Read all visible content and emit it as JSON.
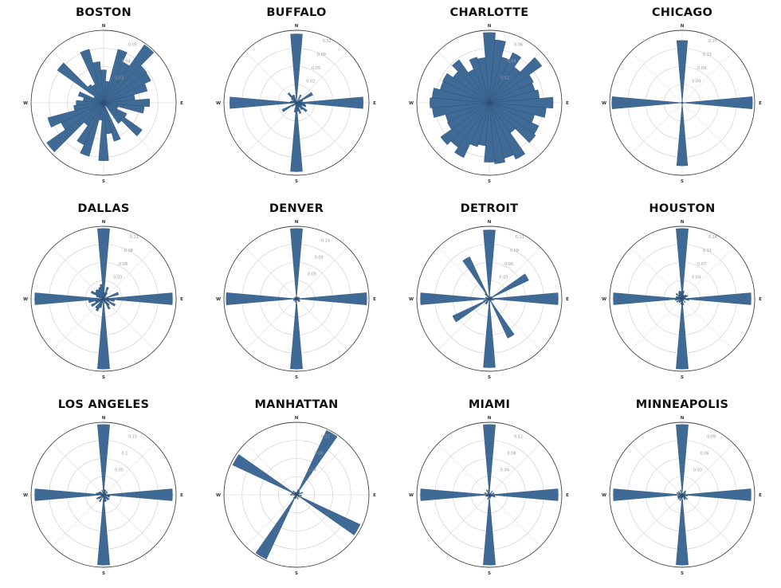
{
  "chart_data": [
    {
      "type": "polar-bar",
      "title": "BOSTON",
      "directions": [
        "N",
        "E",
        "S",
        "W"
      ],
      "rticks": [
        "0.03",
        "0.04",
        "0.05"
      ],
      "seed": 1,
      "base": 0.42,
      "jitter": 0.38,
      "spikes": [
        [
          43,
          0.98
        ],
        [
          227,
          0.96
        ],
        [
          305,
          0.78
        ],
        [
          125,
          0.65
        ],
        [
          163,
          0.55
        ],
        [
          60,
          0.72
        ]
      ]
    },
    {
      "type": "polar-bar",
      "title": "BUFFALO",
      "directions": [
        "N",
        "E",
        "S",
        "W"
      ],
      "rticks": [
        "0.02",
        "0.05",
        "0.09",
        "0.12"
      ],
      "seed": 2,
      "base": 0.08,
      "jitter": 0.1,
      "spikes": [
        [
          0,
          0.95
        ],
        [
          90,
          0.92
        ],
        [
          180,
          0.95
        ],
        [
          270,
          0.92
        ],
        [
          60,
          0.25
        ],
        [
          240,
          0.22
        ]
      ]
    },
    {
      "type": "polar-bar",
      "title": "CHARLOTTE",
      "directions": [
        "N",
        "E",
        "S",
        "W"
      ],
      "rticks": [
        "0.02",
        "0.04",
        "0.06"
      ],
      "seed": 3,
      "base": 0.7,
      "jitter": 0.2,
      "spikes": [
        [
          0,
          0.97
        ],
        [
          180,
          0.82
        ],
        [
          270,
          0.82
        ],
        [
          90,
          0.77
        ]
      ]
    },
    {
      "type": "polar-bar",
      "title": "CHICAGO",
      "directions": [
        "N",
        "E",
        "S",
        "W"
      ],
      "rticks": [
        "0.04",
        "0.09",
        "0.13",
        "0.17"
      ],
      "seed": 4,
      "base": 0.01,
      "jitter": 0.01,
      "spikes": [
        [
          0,
          0.86
        ],
        [
          90,
          0.97
        ],
        [
          180,
          0.87
        ],
        [
          270,
          0.97
        ]
      ]
    },
    {
      "type": "polar-bar",
      "title": "DALLAS",
      "directions": [
        "N",
        "E",
        "S",
        "W"
      ],
      "rticks": [
        "0.03",
        "0.06",
        "0.08",
        "0.11"
      ],
      "seed": 5,
      "base": 0.08,
      "jitter": 0.14,
      "spikes": [
        [
          0,
          0.97
        ],
        [
          90,
          0.95
        ],
        [
          180,
          0.97
        ],
        [
          270,
          0.95
        ]
      ]
    },
    {
      "type": "polar-bar",
      "title": "DENVER",
      "directions": [
        "N",
        "E",
        "S",
        "W"
      ],
      "rticks": [
        "0.05",
        "0.09",
        "0.14"
      ],
      "seed": 6,
      "base": 0.03,
      "jitter": 0.03,
      "spikes": [
        [
          0,
          0.97
        ],
        [
          90,
          0.97
        ],
        [
          180,
          0.97
        ],
        [
          270,
          0.97
        ]
      ]
    },
    {
      "type": "polar-bar",
      "title": "DETROIT",
      "directions": [
        "N",
        "E",
        "S",
        "W"
      ],
      "rticks": [
        "0.03",
        "0.06",
        "0.09",
        "0.11"
      ],
      "seed": 7,
      "base": 0.04,
      "jitter": 0.05,
      "spikes": [
        [
          0,
          0.95
        ],
        [
          90,
          0.95
        ],
        [
          180,
          0.95
        ],
        [
          270,
          0.95
        ],
        [
          330,
          0.64
        ],
        [
          62,
          0.6
        ],
        [
          242,
          0.56
        ],
        [
          150,
          0.6
        ]
      ]
    },
    {
      "type": "polar-bar",
      "title": "HOUSTON",
      "directions": [
        "N",
        "E",
        "S",
        "W"
      ],
      "rticks": [
        "0.04",
        "0.07",
        "0.11",
        "0.14"
      ],
      "seed": 8,
      "base": 0.06,
      "jitter": 0.06,
      "spikes": [
        [
          0,
          0.97
        ],
        [
          90,
          0.95
        ],
        [
          180,
          0.97
        ],
        [
          270,
          0.95
        ]
      ]
    },
    {
      "type": "polar-bar",
      "title": "LOS ANGELES",
      "directions": [
        "N",
        "E",
        "S",
        "W"
      ],
      "rticks": [
        "0.05",
        "0.1",
        "0.15"
      ],
      "seed": 9,
      "base": 0.05,
      "jitter": 0.06,
      "spikes": [
        [
          0,
          0.97
        ],
        [
          90,
          0.95
        ],
        [
          180,
          0.97
        ],
        [
          270,
          0.95
        ]
      ]
    },
    {
      "type": "polar-bar",
      "title": "MANHATTAN",
      "directions": [
        "N",
        "E",
        "S",
        "W"
      ],
      "rticks": [
        "0.04",
        "0.08",
        "0.12"
      ],
      "seed": 10,
      "base": 0.04,
      "jitter": 0.05,
      "spikes": [
        [
          29,
          0.98
        ],
        [
          119,
          0.97
        ],
        [
          209,
          0.98
        ],
        [
          299,
          0.97
        ]
      ]
    },
    {
      "type": "polar-bar",
      "title": "MIAMI",
      "directions": [
        "N",
        "E",
        "S",
        "W"
      ],
      "rticks": [
        "0.04",
        "0.08",
        "0.12"
      ],
      "seed": 11,
      "base": 0.04,
      "jitter": 0.05,
      "spikes": [
        [
          0,
          0.97
        ],
        [
          90,
          0.95
        ],
        [
          180,
          0.97
        ],
        [
          270,
          0.95
        ]
      ]
    },
    {
      "type": "polar-bar",
      "title": "MINNEAPOLIS",
      "directions": [
        "N",
        "E",
        "S",
        "W"
      ],
      "rticks": [
        "0.03",
        "0.06",
        "0.09"
      ],
      "seed": 12,
      "base": 0.04,
      "jitter": 0.05,
      "spikes": [
        [
          0,
          0.97
        ],
        [
          90,
          0.95
        ],
        [
          180,
          0.97
        ],
        [
          270,
          0.95
        ]
      ]
    }
  ],
  "colors": {
    "bar_fill": "#3f6a96",
    "bar_stroke": "#2b4d72",
    "grid": "#cccccc",
    "outer": "#444444"
  }
}
